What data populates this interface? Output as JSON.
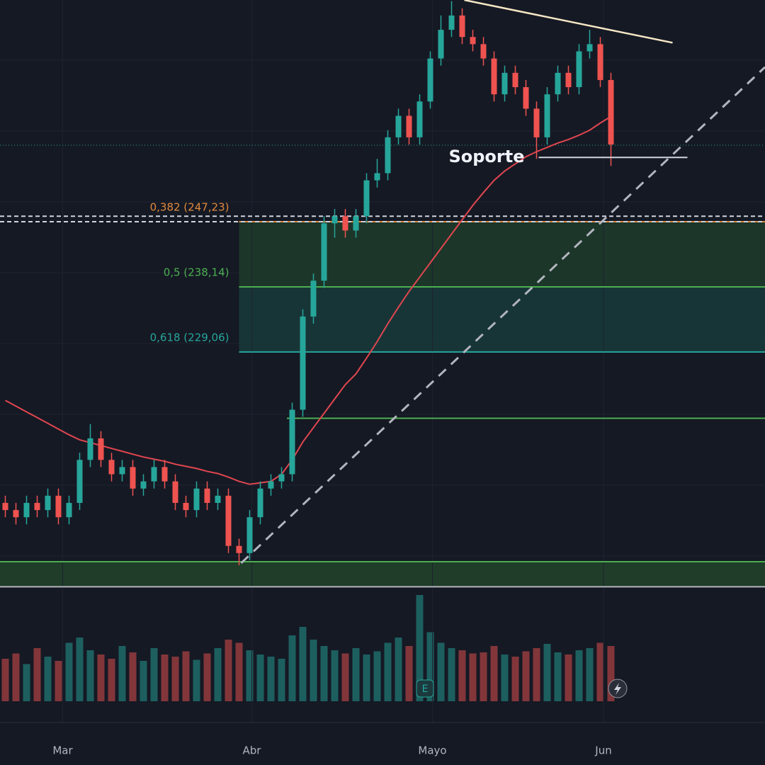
{
  "chart_data": {
    "type": "candlestick",
    "xlim": [
      -0.5,
      71.5
    ],
    "ylim": [
      195.15,
      278.16
    ],
    "xticks": [
      {
        "value": 5.4,
        "label": "Mar"
      },
      {
        "value": 23.2,
        "label": "Abr"
      },
      {
        "value": 40.2,
        "label": "Mayo"
      },
      {
        "value": 56.3,
        "label": "Jun"
      }
    ],
    "up_color": "#26a69a",
    "down_color": "#ef5350",
    "open": [
      208,
      207,
      206,
      208,
      207,
      209,
      206,
      208,
      214,
      217,
      214,
      212,
      213,
      210,
      211,
      213,
      211,
      208,
      207,
      210,
      208,
      209,
      202,
      201,
      206,
      210,
      211,
      212,
      221,
      234,
      239,
      247,
      248,
      246,
      248,
      253,
      254,
      259,
      262,
      259,
      264,
      270,
      274,
      276,
      273,
      272,
      270,
      265,
      268,
      266,
      263,
      259,
      265,
      268,
      266,
      271,
      272,
      267
    ],
    "high": [
      209,
      208,
      209,
      209,
      210,
      210,
      209,
      215,
      219,
      218,
      215,
      214,
      214,
      212,
      214,
      214,
      212,
      209,
      211,
      211,
      210,
      210,
      203,
      207,
      211,
      212,
      213,
      222,
      235,
      240,
      248,
      249,
      249,
      249,
      254,
      256,
      260,
      263,
      263,
      265,
      271,
      276,
      278,
      277,
      274,
      273,
      271,
      269,
      269,
      267,
      264,
      266,
      269,
      269,
      272,
      274,
      273,
      268
    ],
    "low": [
      206,
      205,
      205,
      206,
      206,
      205,
      205,
      207,
      213,
      213,
      211,
      211,
      209,
      209,
      210,
      210,
      207,
      206,
      206,
      207,
      207,
      201,
      199.3,
      200,
      205,
      209,
      210,
      211,
      220,
      233,
      238,
      245,
      245,
      245,
      247,
      252,
      253,
      258,
      258,
      258,
      263,
      269,
      273,
      272,
      271,
      269,
      264,
      264,
      265,
      262,
      256,
      258,
      264,
      265,
      265,
      270,
      266,
      255
    ],
    "close": [
      207,
      206,
      208,
      207,
      209,
      206,
      208,
      214,
      217,
      214,
      212,
      213,
      210,
      211,
      213,
      211,
      208,
      207,
      210,
      208,
      209,
      202,
      201,
      206,
      210,
      211,
      212,
      221,
      234,
      239,
      247,
      248,
      246,
      248,
      253,
      254,
      259,
      262,
      259,
      264,
      270,
      274,
      276,
      273,
      272,
      270,
      265,
      268,
      266,
      263,
      259,
      265,
      268,
      266,
      271,
      272,
      267,
      258
    ],
    "volume": [
      40,
      45,
      35,
      50,
      42,
      38,
      55,
      60,
      48,
      44,
      40,
      52,
      46,
      38,
      50,
      44,
      42,
      47,
      39,
      45,
      50,
      58,
      55,
      48,
      44,
      42,
      40,
      62,
      70,
      58,
      52,
      48,
      45,
      50,
      44,
      47,
      55,
      60,
      52,
      100,
      65,
      55,
      50,
      48,
      45,
      46,
      52,
      44,
      42,
      47,
      50,
      54,
      46,
      44,
      48,
      50,
      55,
      52
    ],
    "moving_average": {
      "color": "#e0464f",
      "values": [
        222.3,
        221.5,
        220.7,
        219.9,
        219.1,
        218.3,
        217.5,
        216.8,
        216.4,
        216,
        215.6,
        215.2,
        214.8,
        214.4,
        214.1,
        213.8,
        213.4,
        213.1,
        212.8,
        212.4,
        212.1,
        211.6,
        211,
        210.6,
        210.8,
        211,
        212,
        214,
        216.5,
        218.5,
        220.5,
        222.5,
        224.5,
        226,
        228.2,
        230.5,
        233,
        235.3,
        237.5,
        239.5,
        241.5,
        243.5,
        245.5,
        247.5,
        249.5,
        251.3,
        253,
        254.3,
        255.3,
        256.3,
        257,
        257.6,
        258.2,
        258.7,
        259.3,
        260,
        261,
        261.9
      ]
    },
    "fib_levels": [
      {
        "label": "0,382 (247,23)",
        "value": 247.23,
        "color": "#e08a3c",
        "fill": "#1d3a2a"
      },
      {
        "label": "0,5 (238,14)",
        "value": 238.14,
        "color": "#4caf50",
        "fill": "#17393a"
      },
      {
        "label": "0,618 (229,06)",
        "value": 229.06,
        "color": "#26a69a"
      }
    ],
    "fib_start": 22,
    "support": {
      "label": "Soporte",
      "value": 256.2,
      "x": [
        50.2,
        64.2
      ]
    },
    "green_level": {
      "value": 219.8,
      "x": [
        26.5,
        71.5
      ]
    },
    "zone": {
      "low": 196.3,
      "high": 199.8
    },
    "trendline": {
      "x": [
        22.2,
        71.5
      ],
      "y": [
        199.6,
        268.8
      ]
    },
    "resistance": {
      "x": [
        43.2,
        62.8
      ],
      "y": [
        278.16,
        272.2
      ]
    },
    "last_price": 257.9,
    "dashed_levels": [
      248.0,
      247.23
    ]
  }
}
